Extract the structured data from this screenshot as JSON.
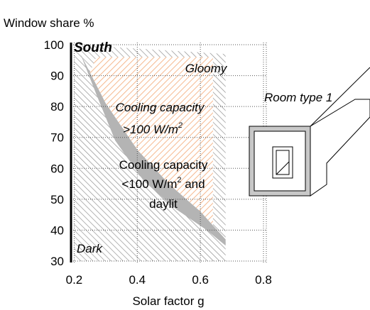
{
  "chart_data": {
    "type": "region",
    "ylabel": "Window share %",
    "xlabel": "Solar factor g",
    "xlim": [
      0.19,
      0.8
    ],
    "xticks": [
      0.2,
      0.4,
      0.6,
      0.8
    ],
    "ylim": [
      30,
      100
    ],
    "yticks": [
      30,
      40,
      50,
      60,
      70,
      80,
      90,
      100
    ],
    "grid": true,
    "regions": [
      {
        "color": "#8a8a8a",
        "fill": "hatch",
        "x": [
          0.2,
          0.68,
          0.68,
          0.2
        ],
        "y": [
          30,
          30,
          97,
          100
        ]
      },
      {
        "color": "#f4b183",
        "fill": "hatch",
        "x": [
          0.27,
          0.64,
          0.64,
          0.68,
          0.6,
          0.5,
          0.4,
          0.3,
          0.25
        ],
        "y": [
          96,
          96,
          40,
          37,
          46,
          55,
          66,
          81,
          91
        ]
      },
      {
        "color": "#b4b4b4",
        "fill": "solid",
        "x": [
          0.22,
          0.25,
          0.3,
          0.4,
          0.5,
          0.6,
          0.68,
          0.68,
          0.62,
          0.52,
          0.42,
          0.33,
          0.27
        ],
        "y": [
          97,
          91,
          81,
          66,
          55,
          46,
          37,
          35,
          40,
          47,
          56,
          69,
          84
        ]
      }
    ],
    "annotations": [
      {
        "text": "South",
        "style": "bold-italic"
      },
      {
        "text": "Gloomy",
        "style": "italic"
      },
      {
        "text": "Cooling capacity",
        "style": "italic"
      },
      {
        "text": ">100 W/m",
        "sup": "2",
        "style": "italic"
      },
      {
        "text": "Cooling capacity",
        "style": "normal"
      },
      {
        "text": "<100 W/m",
        "sup": "2",
        "after": " and",
        "style": "normal"
      },
      {
        "text": "daylit",
        "style": "normal"
      },
      {
        "text": "Dark",
        "style": "italic"
      }
    ],
    "room_label": "Room type 1"
  }
}
